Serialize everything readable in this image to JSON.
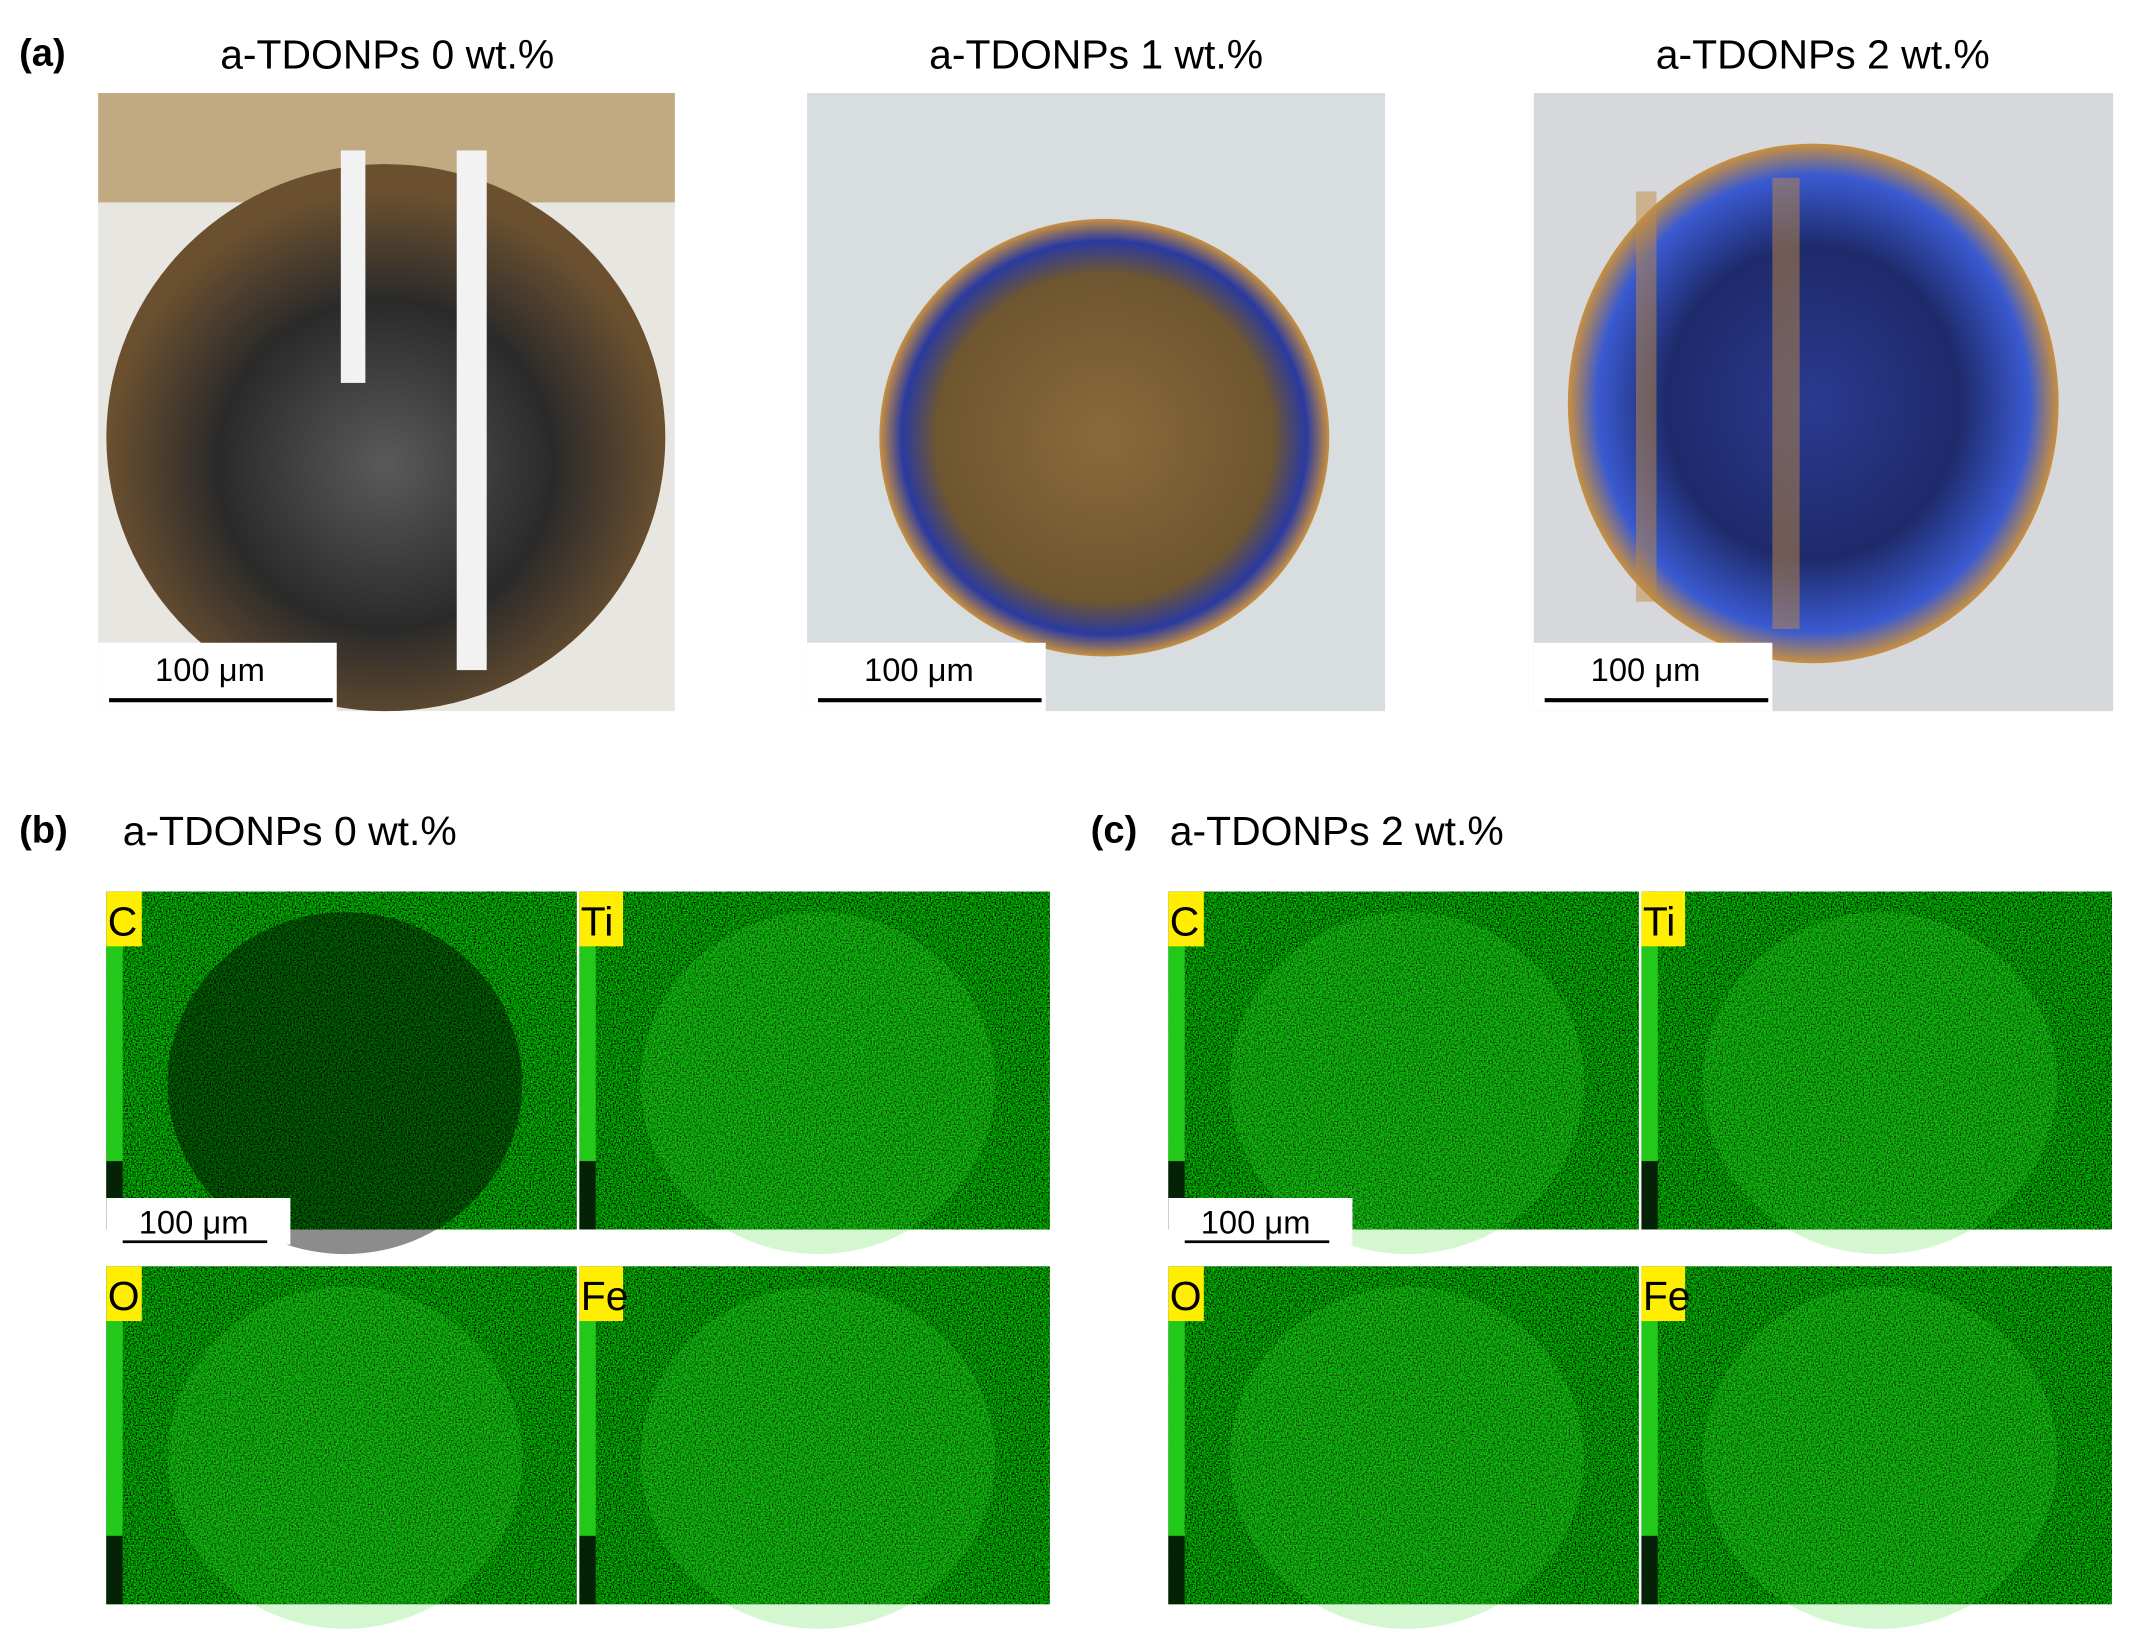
{
  "panel_a": {
    "label": "(a)",
    "images": [
      {
        "title": "a-TDONPs 0 wt.%",
        "scale_bar": "100 μm"
      },
      {
        "title": "a-TDONPs 1 wt.%",
        "scale_bar": "100 μm"
      },
      {
        "title": "a-TDONPs 2 wt.%",
        "scale_bar": "100 μm"
      }
    ]
  },
  "panel_b": {
    "label": "(b)",
    "title": "a-TDONPs 0 wt.%",
    "scale_bar": "100 μm",
    "maps": [
      {
        "element": "C"
      },
      {
        "element": "Ti"
      },
      {
        "element": "O"
      },
      {
        "element": "Fe"
      }
    ]
  },
  "panel_c": {
    "label": "(c)",
    "title": "a-TDONPs 2 wt.%",
    "scale_bar": "100 μm",
    "maps": [
      {
        "element": "C"
      },
      {
        "element": "Ti"
      },
      {
        "element": "O"
      },
      {
        "element": "Fe"
      }
    ]
  }
}
